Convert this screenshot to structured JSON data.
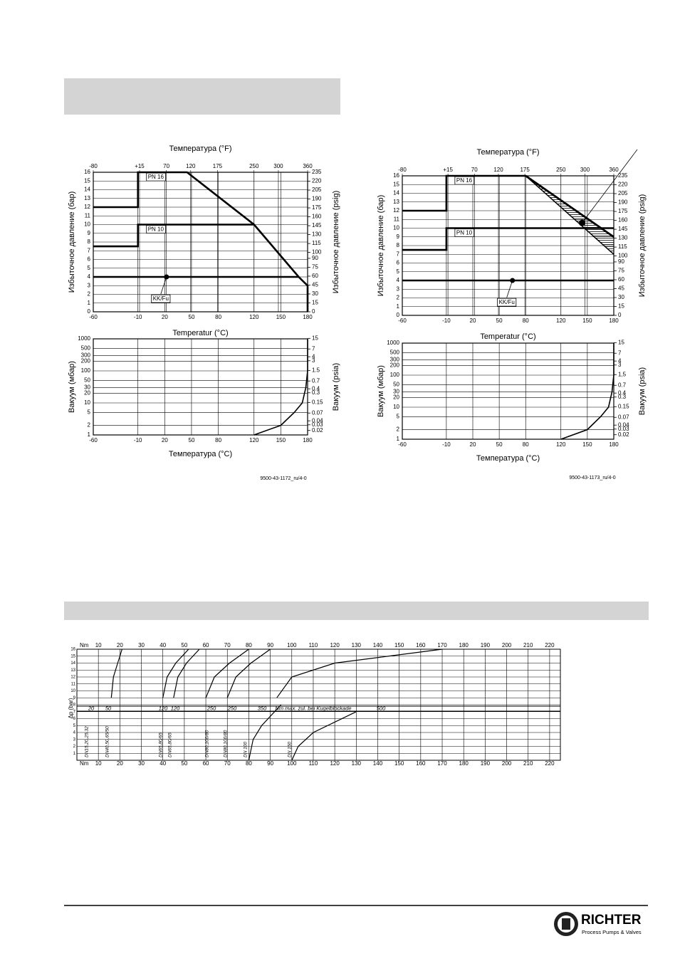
{
  "chart_data": [
    {
      "type": "line",
      "x2label": "Температура (°F)",
      "xlabel": "Temperatur (°C)",
      "ylabel": "Избыточное давление (бар)",
      "y2label": "Избыточное давление (psig)",
      "xlim": [
        -60,
        180
      ],
      "xticks": [
        -60,
        -10,
        20,
        50,
        80,
        120,
        150,
        180
      ],
      "x2lim": [
        -80,
        360
      ],
      "x2ticks": [
        -80,
        {
          "value": 15,
          "label": "+15"
        },
        70,
        120,
        175,
        250,
        300,
        360
      ],
      "ylim": [
        0,
        16
      ],
      "yticks": [
        0,
        1,
        2,
        3,
        4,
        5,
        6,
        7,
        8,
        9,
        10,
        11,
        12,
        13,
        14,
        15,
        16
      ],
      "y2lim": [
        0,
        235
      ],
      "y2ticks": [
        0,
        15,
        30,
        45,
        60,
        75,
        90,
        100,
        115,
        130,
        145,
        160,
        175,
        190,
        205,
        220,
        235
      ],
      "grid": true,
      "series": [
        {
          "name": "PN 16",
          "color": "#000000",
          "x": [
            -60,
            -10,
            -10,
            45,
            120,
            170,
            180,
            180
          ],
          "values": [
            12,
            12,
            16,
            16,
            10,
            4,
            3,
            0
          ]
        },
        {
          "name": "PN 10",
          "color": "#000000",
          "x": [
            -60,
            -10,
            -10,
            120
          ],
          "values": [
            7.5,
            7.5,
            10,
            10
          ]
        },
        {
          "name": "KK/Fu",
          "color": "#000000",
          "x": [
            -60,
            170
          ],
          "values": [
            4,
            4
          ],
          "point": [
            22,
            4
          ]
        }
      ]
    },
    {
      "type": "line",
      "log_y": true,
      "xlabel": "Температура (°C)",
      "ylabel": "Вакуум (мбар)",
      "y2label": "Вакуум (psia)",
      "xlim": [
        -60,
        180
      ],
      "xticks": [
        -60,
        -10,
        20,
        50,
        80,
        120,
        150,
        180
      ],
      "ylim": [
        1,
        1000
      ],
      "yticks": [
        1,
        2,
        5,
        10,
        20,
        30,
        50,
        100,
        200,
        300,
        500,
        1000
      ],
      "y2lim": [
        0.0145,
        14.5
      ],
      "y2ticks": [
        0.02,
        0.03,
        0.04,
        0.07,
        0.15,
        0.3,
        0.4,
        0.7,
        1.5,
        3,
        4,
        7,
        15
      ],
      "grid": true,
      "series": [
        {
          "color": "#000000",
          "x": [
            120,
            150,
            165,
            174,
            178,
            180,
            180
          ],
          "values": [
            1,
            2,
            5,
            10,
            30,
            100,
            1000
          ]
        }
      ]
    },
    {
      "type": "line",
      "x2label": "Температура (°F)",
      "xlabel": "Temperatur (°C)",
      "ylabel": "Избыточное давление (бар)",
      "y2label": "Избыточное давление (psig)",
      "xlim": [
        -60,
        180
      ],
      "xticks": [
        -60,
        -10,
        20,
        50,
        80,
        120,
        150,
        180
      ],
      "x2lim": [
        -80,
        360
      ],
      "x2ticks": [
        -80,
        {
          "value": 15,
          "label": "+15"
        },
        70,
        120,
        175,
        250,
        300,
        360
      ],
      "ylim": [
        0,
        16
      ],
      "yticks": [
        0,
        1,
        2,
        3,
        4,
        5,
        6,
        7,
        8,
        9,
        10,
        11,
        12,
        13,
        14,
        15,
        16
      ],
      "y2lim": [
        0,
        235
      ],
      "y2ticks": [
        0,
        15,
        30,
        45,
        60,
        75,
        90,
        100,
        115,
        130,
        145,
        160,
        175,
        190,
        205,
        220,
        235
      ],
      "grid": true,
      "series": [
        {
          "name": "PN 16",
          "color": "#000000",
          "x": [
            -60,
            -10,
            -10,
            80,
            180
          ],
          "values": [
            12,
            12,
            16,
            16,
            9
          ]
        },
        {
          "name": "PN 10",
          "color": "#000000",
          "x": [
            -60,
            -10,
            -10,
            180
          ],
          "values": [
            7.5,
            7.5,
            10,
            10
          ]
        },
        {
          "name": "KK/Fu",
          "color": "#000000",
          "x": [
            -60,
            180
          ],
          "values": [
            4,
            4
          ],
          "point": [
            65,
            4
          ]
        }
      ],
      "band": {
        "x": [
          80,
          180
        ],
        "upper": [
          16,
          9
        ],
        "lower": [
          16,
          7
        ],
        "point": [
          144,
          10.6
        ]
      }
    },
    {
      "type": "line",
      "log_y": true,
      "xlabel": "Температура (°C)",
      "ylabel": "Вакуум (мбар)",
      "y2label": "Вакуум (psia)",
      "xlim": [
        -60,
        180
      ],
      "xticks": [
        -60,
        -10,
        20,
        50,
        80,
        120,
        150,
        180
      ],
      "ylim": [
        1,
        1000
      ],
      "yticks": [
        1,
        2,
        5,
        10,
        20,
        30,
        50,
        100,
        200,
        300,
        500,
        1000
      ],
      "y2lim": [
        0.0145,
        14.5
      ],
      "y2ticks": [
        0.02,
        0.03,
        0.04,
        0.07,
        0.15,
        0.3,
        0.4,
        0.7,
        {
          "value": 1.5,
          "label": "1,5"
        },
        3,
        4,
        7,
        15
      ],
      "grid": true,
      "series": [
        {
          "color": "#000000",
          "x": [
            120,
            150,
            165,
            174,
            178,
            180,
            180
          ],
          "values": [
            1,
            2,
            5,
            10,
            30,
            100,
            1000
          ]
        }
      ]
    },
    {
      "type": "torque",
      "x_unit": "Nm",
      "ylabel": "Δp (bar)",
      "xlim": [
        0,
        225
      ],
      "xticks": [
        10,
        20,
        30,
        40,
        50,
        60,
        70,
        80,
        90,
        100,
        110,
        120,
        130,
        140,
        150,
        160,
        170,
        180,
        190,
        200,
        210,
        220
      ],
      "ylim": [
        0,
        16
      ],
      "yticks": [
        1,
        2,
        3,
        4,
        5,
        6,
        7,
        8,
        9,
        10,
        11,
        12,
        13,
        14,
        15,
        16
      ],
      "grid": true,
      "series": [
        {
          "color": "#000000",
          "x": [
            16,
            17,
            19,
            21
          ],
          "values": [
            9,
            12,
            14,
            16
          ]
        },
        {
          "color": "#000000",
          "x": [
            40,
            42,
            46,
            52
          ],
          "values": [
            9,
            12,
            14,
            16
          ]
        },
        {
          "color": "#000000",
          "x": [
            45,
            47,
            51,
            57
          ],
          "values": [
            9,
            12,
            14,
            16
          ]
        },
        {
          "color": "#000000",
          "x": [
            60,
            64,
            71,
            80
          ],
          "values": [
            9,
            12,
            14,
            16
          ]
        },
        {
          "color": "#000000",
          "x": [
            70,
            74,
            81,
            90
          ],
          "values": [
            9,
            12,
            14,
            16
          ]
        },
        {
          "color": "#000000",
          "x": [
            93,
            100,
            120,
            170
          ],
          "values": [
            9,
            12,
            14,
            16
          ]
        },
        {
          "color": "#000000",
          "x": [
            80,
            82,
            86,
            95
          ],
          "values": [
            0,
            3,
            5,
            8
          ]
        },
        {
          "color": "#000000",
          "x": [
            100,
            103,
            110,
            130
          ],
          "values": [
            0,
            2,
            4,
            7
          ]
        }
      ],
      "annotations": [
        "20",
        "50",
        "120",
        "120",
        "250",
        "250",
        "350",
        "Nm max. zul. bei Kugelblockade",
        "500"
      ],
      "dn_labels": [
        "DN15,20,25,32",
        "DN40,50,65/50",
        "DN65,80/65",
        "DN65,80/65",
        "DN80,100/80",
        "DN80,100/80",
        "DN 100",
        "DN 150"
      ]
    }
  ],
  "figure_codes": [
    "9500-43-1172_ru/4-0",
    "9500-43-1173_ru/4-0"
  ],
  "footer": {
    "brand": "RICHTER",
    "tagline": "Process Pumps & Valves"
  }
}
